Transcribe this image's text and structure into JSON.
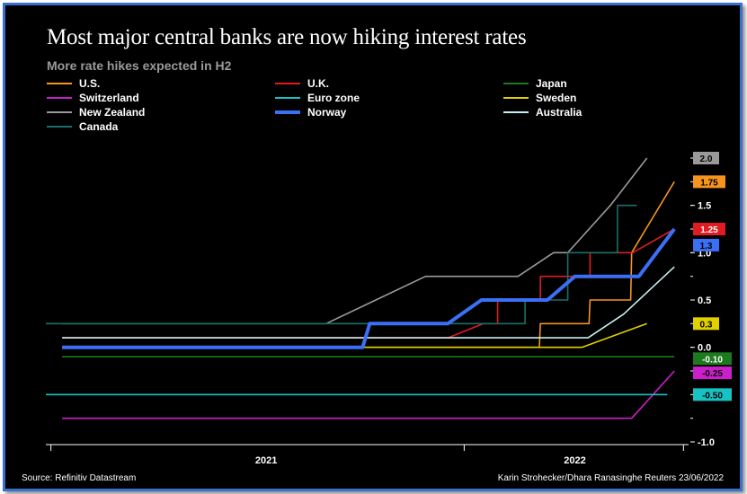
{
  "title": "Most major central banks are now hiking interest rates",
  "subtitle": "More rate hikes expected in H2",
  "source": "Source: Refinitiv Datastream",
  "credit": "Karin Strohecker/Dhara Ranasinghe Reuters 23/06/2022",
  "frame_color": "#3a6fd0",
  "chart_data": {
    "type": "line",
    "title": "Most major central banks are now hiking interest rates",
    "subtitle": "More rate hikes expected in H2",
    "xlabel": "",
    "ylabel": "",
    "x_categories": [
      "2021",
      "2022"
    ],
    "ylim": [
      -1.0,
      2.0
    ],
    "y_ticks": [
      "2.0",
      "1.5",
      "1.0",
      "0.5",
      "0.0",
      "-1.0"
    ],
    "grid": false,
    "legend_position": "top",
    "series": [
      {
        "name": "U.S.",
        "color": "#f7941d",
        "end_label": "1.75",
        "label_text_color": "#000000",
        "points": [
          [
            "2020-12-01",
            0.0
          ],
          [
            "2022-03-16",
            0.0
          ],
          [
            "2022-03-17",
            0.25
          ],
          [
            "2022-05-04",
            0.25
          ],
          [
            "2022-05-05",
            0.5
          ],
          [
            "2022-06-14",
            0.5
          ],
          [
            "2022-06-15",
            1.0
          ],
          [
            "2022-07-27",
            1.75
          ]
        ]
      },
      {
        "name": "U.K.",
        "color": "#e01b22",
        "end_label": "1.25",
        "label_text_color": "#ffffff",
        "points": [
          [
            "2020-12-01",
            0.1
          ],
          [
            "2021-12-16",
            0.1
          ],
          [
            "2022-01-20",
            0.25
          ],
          [
            "2022-02-03",
            0.25
          ],
          [
            "2022-02-03",
            0.5
          ],
          [
            "2022-03-17",
            0.5
          ],
          [
            "2022-03-17",
            0.75
          ],
          [
            "2022-05-05",
            0.75
          ],
          [
            "2022-05-05",
            1.0
          ],
          [
            "2022-06-16",
            1.0
          ],
          [
            "2022-07-27",
            1.25
          ]
        ]
      },
      {
        "name": "Japan",
        "color": "#1e7a1e",
        "end_label": "-0.10",
        "label_text_color": "#ffffff",
        "points": [
          [
            "2020-12-01",
            -0.1
          ],
          [
            "2022-07-27",
            -0.1
          ]
        ]
      },
      {
        "name": "Switzerland",
        "color": "#cc1fcc",
        "end_label": "-0.25",
        "label_text_color": "#000000",
        "points": [
          [
            "2020-12-01",
            -0.75
          ],
          [
            "2022-06-15",
            -0.75
          ],
          [
            "2022-07-27",
            -0.25
          ]
        ]
      },
      {
        "name": "Euro zone",
        "color": "#19c2c2",
        "end_label": "-0.50",
        "label_text_color": "#000000",
        "points": [
          [
            "2020-11-15",
            -0.5
          ],
          [
            "2022-07-20",
            -0.5
          ]
        ]
      },
      {
        "name": "Sweden",
        "color": "#e0d000",
        "end_label": "0.3",
        "label_text_color": "#000000",
        "points": [
          [
            "2020-12-01",
            0.0
          ],
          [
            "2022-04-27",
            0.0
          ],
          [
            "2022-06-30",
            0.25
          ]
        ]
      },
      {
        "name": "New Zealand",
        "color": "#9a9a9a",
        "end_label": "2.0",
        "label_text_color": "#000000",
        "points": [
          [
            "2020-12-01",
            0.25
          ],
          [
            "2021-08-18",
            0.25
          ],
          [
            "2021-10-06",
            0.5
          ],
          [
            "2021-11-24",
            0.75
          ],
          [
            "2022-02-23",
            0.75
          ],
          [
            "2022-03-30",
            1.0
          ],
          [
            "2022-04-13",
            1.0
          ],
          [
            "2022-05-25",
            1.5
          ],
          [
            "2022-06-30",
            2.0
          ]
        ]
      },
      {
        "name": "Norway",
        "color": "#3b6ff5",
        "end_label": "1.3",
        "label_text_color": "#000000",
        "bold": true,
        "points": [
          [
            "2020-12-01",
            0.0
          ],
          [
            "2021-09-23",
            0.0
          ],
          [
            "2021-09-30",
            0.25
          ],
          [
            "2021-12-16",
            0.25
          ],
          [
            "2022-01-18",
            0.5
          ],
          [
            "2022-03-24",
            0.5
          ],
          [
            "2022-04-20",
            0.75
          ],
          [
            "2022-06-22",
            0.75
          ],
          [
            "2022-07-27",
            1.25
          ]
        ]
      },
      {
        "name": "Australia",
        "color": "#c8f0f0",
        "end_label": "",
        "label_text_color": "#000000",
        "points": [
          [
            "2020-12-01",
            0.1
          ],
          [
            "2022-05-03",
            0.1
          ],
          [
            "2022-06-07",
            0.35
          ],
          [
            "2022-07-27",
            0.85
          ]
        ]
      },
      {
        "name": "Canada",
        "color": "#1a6f6a",
        "end_label": "",
        "label_text_color": "#000000",
        "points": [
          [
            "2020-11-15",
            0.25
          ],
          [
            "2022-03-02",
            0.25
          ],
          [
            "2022-03-02",
            0.5
          ],
          [
            "2022-04-13",
            0.5
          ],
          [
            "2022-04-13",
            1.0
          ],
          [
            "2022-06-01",
            1.0
          ],
          [
            "2022-06-01",
            1.5
          ],
          [
            "2022-06-20",
            1.5
          ]
        ]
      }
    ]
  }
}
